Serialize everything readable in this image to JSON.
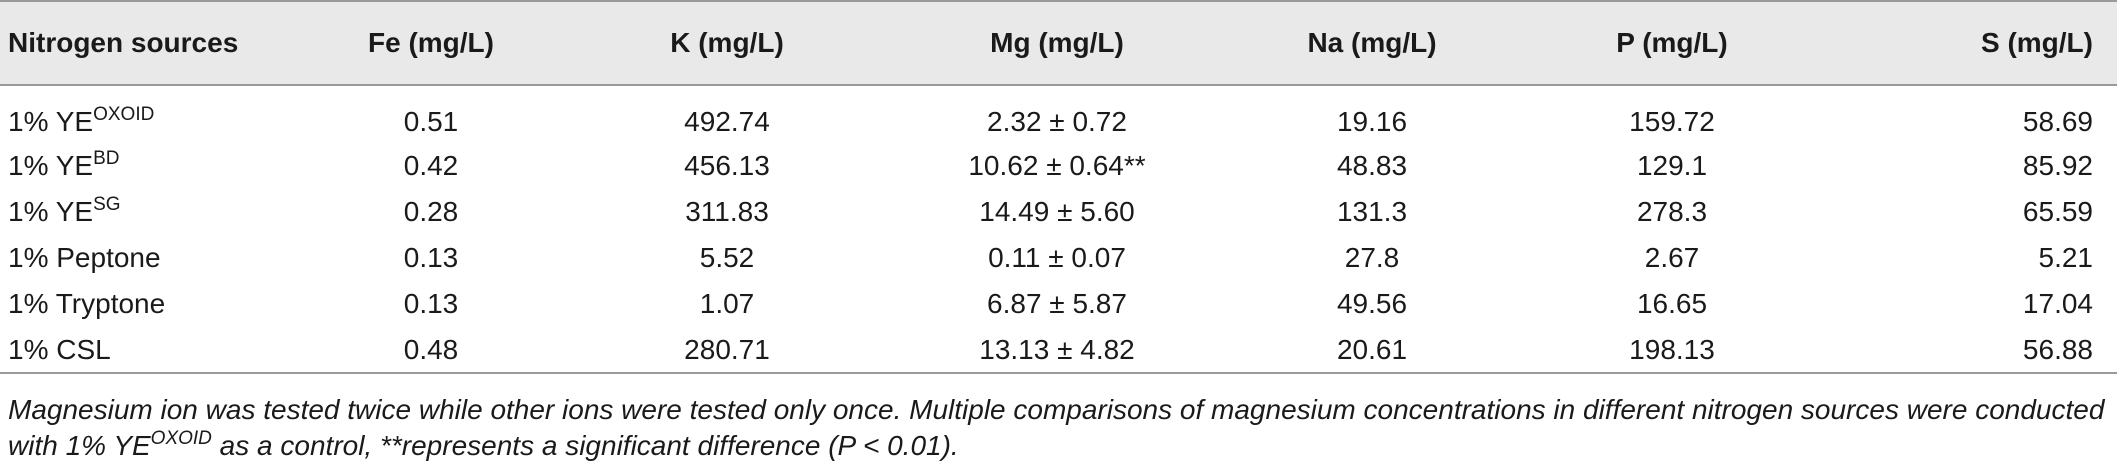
{
  "headers": [
    "Nitrogen sources",
    "Fe (mg/L)",
    "K (mg/L)",
    "Mg (mg/L)",
    "Na (mg/L)",
    "P (mg/L)",
    "S (mg/L)"
  ],
  "rows": [
    {
      "source": "1% YE",
      "sup": "OXOID",
      "fe": "0.51",
      "k": "492.74",
      "mg": "2.32 ± 0.72",
      "na": "19.16",
      "p": "159.72",
      "s": "58.69"
    },
    {
      "source": "1% YE",
      "sup": "BD",
      "fe": "0.42",
      "k": "456.13",
      "mg": "10.62 ± 0.64**",
      "na": "48.83",
      "p": "129.1",
      "s": "85.92"
    },
    {
      "source": "1% YE",
      "sup": "SG",
      "fe": "0.28",
      "k": "311.83",
      "mg": "14.49 ± 5.60",
      "na": "131.3",
      "p": "278.3",
      "s": "65.59"
    },
    {
      "source": "1% Peptone",
      "sup": "",
      "fe": "0.13",
      "k": "5.52",
      "mg": "0.11 ± 0.07",
      "na": "27.8",
      "p": "2.67",
      "s": "5.21"
    },
    {
      "source": "1% Tryptone",
      "sup": "",
      "fe": "0.13",
      "k": "1.07",
      "mg": "6.87 ± 5.87",
      "na": "49.56",
      "p": "16.65",
      "s": "17.04"
    },
    {
      "source": "1% CSL",
      "sup": "",
      "fe": "0.48",
      "k": "280.71",
      "mg": "13.13 ± 4.82",
      "na": "20.61",
      "p": "198.13",
      "s": "56.88"
    }
  ],
  "note": {
    "line1": "Magnesium ion was tested twice while other ions were tested only once. Multiple comparisons of magnesium concentrations in different nitrogen sources were conducted",
    "line2_pre": "with 1% YE",
    "line2_sup": "OXOID",
    "line2_post": " as a control, **represents a significant difference (P < 0.01)."
  }
}
